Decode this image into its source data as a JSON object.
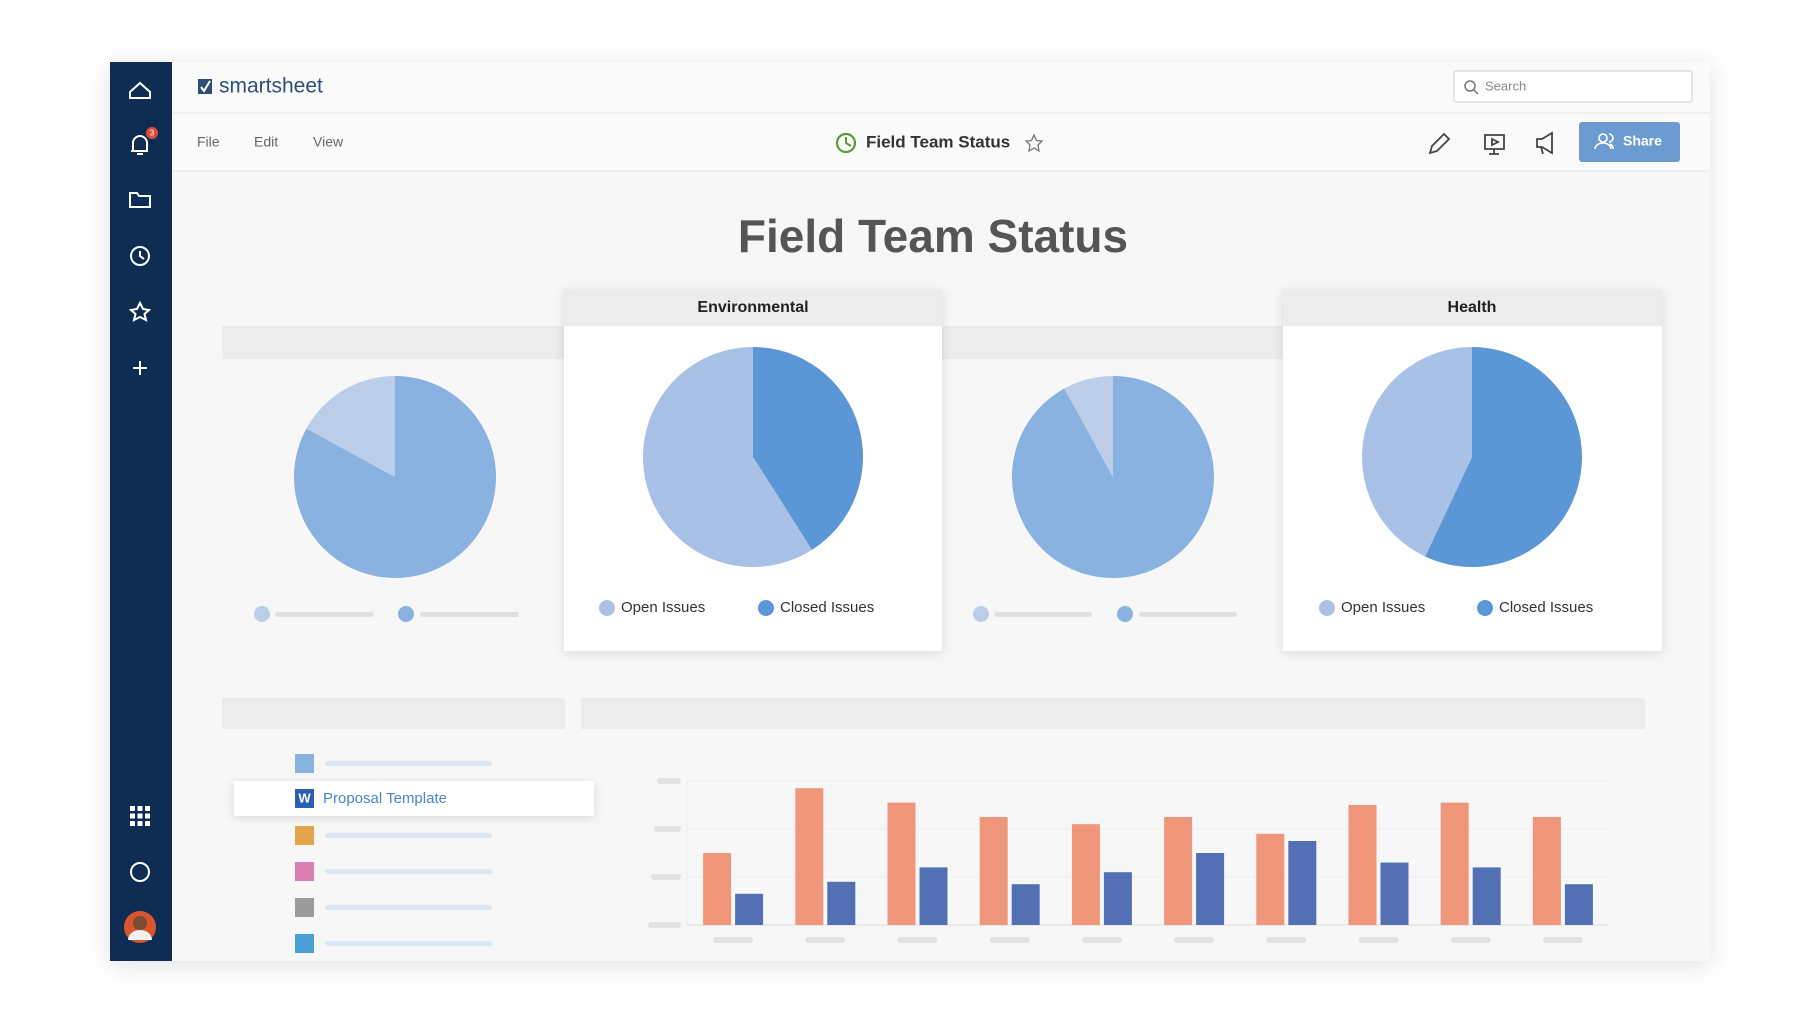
{
  "app": {
    "brand": "smartsheet",
    "search": "Search",
    "notification_count": "3",
    "menu": [
      "File",
      "Edit",
      "View"
    ],
    "doc_title": "Field Team Status",
    "share": "Share",
    "page_title": "Field Team Status",
    "file_item": {
      "icon": "W",
      "label": "Proposal Template"
    }
  },
  "chart_data": [
    {
      "type": "pie",
      "values": [
        17,
        83
      ],
      "colors": [
        "#bccdea",
        "#8ab2e0"
      ]
    },
    {
      "type": "pie",
      "title": "Environmental",
      "categories": [
        "Open Issues",
        "Closed Issues"
      ],
      "values": [
        59,
        41
      ],
      "colors": [
        "#a9c1e6",
        "#5b97d6"
      ]
    },
    {
      "type": "pie",
      "values": [
        8,
        92
      ],
      "colors": [
        "#bccdea",
        "#8ab2e0"
      ]
    },
    {
      "type": "pie",
      "title": "Health",
      "categories": [
        "Open Issues",
        "Closed Issues"
      ],
      "values": [
        43,
        57
      ],
      "colors": [
        "#a9c1e6",
        "#5b97d6"
      ]
    },
    {
      "type": "bar",
      "categories": [
        null,
        null,
        null,
        null,
        null,
        null,
        null,
        null,
        null,
        null
      ],
      "series": [
        {
          "color": "#f0967a",
          "values": [
            1.5,
            2.85,
            2.55,
            2.25,
            2.1,
            2.25,
            1.9,
            2.5,
            2.55,
            2.25
          ]
        },
        {
          "color": "#5470b4",
          "values": [
            0.65,
            0.9,
            1.2,
            0.85,
            1.1,
            1.5,
            1.75,
            1.3,
            1.2,
            0.85
          ]
        }
      ],
      "ylim": [
        0,
        3
      ],
      "yticks": [
        0,
        1,
        2,
        3
      ],
      "grid": true
    }
  ]
}
